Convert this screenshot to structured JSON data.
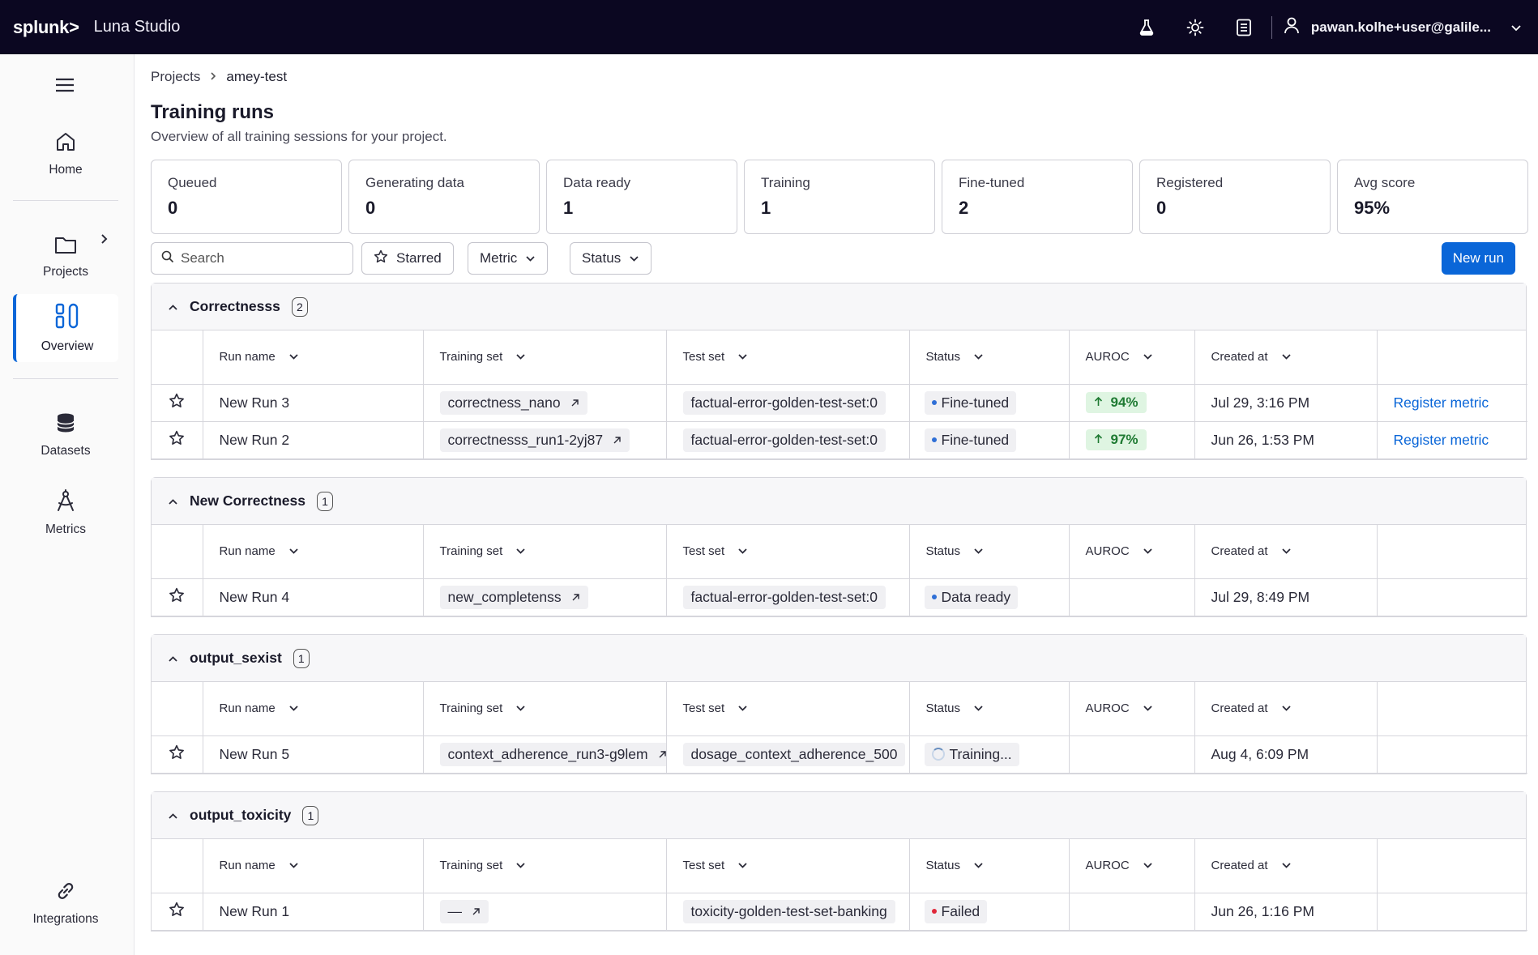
{
  "topbar": {
    "logo": "splunk>",
    "app_title": "Luna Studio",
    "user": "pawan.kolhe+user@galile...",
    "icons": [
      "flask-icon",
      "sun-icon",
      "document-icon",
      "user-icon",
      "chevron-down-icon"
    ]
  },
  "sidebar": {
    "items": [
      {
        "label": "Home",
        "icon": "home-icon"
      },
      {
        "label": "Projects",
        "icon": "folder-icon"
      },
      {
        "label": "Overview",
        "icon": "overview-icon"
      },
      {
        "label": "Datasets",
        "icon": "database-icon"
      },
      {
        "label": "Metrics",
        "icon": "compass-icon"
      },
      {
        "label": "Integrations",
        "icon": "link-icon"
      }
    ],
    "active_color": "#0a66d8"
  },
  "breadcrumb": {
    "root": "Projects",
    "current": "amey-test"
  },
  "page": {
    "title": "Training runs",
    "subtitle": "Overview of all training sessions for your project."
  },
  "stats": [
    {
      "label": "Queued",
      "value": "0"
    },
    {
      "label": "Generating data",
      "value": "0"
    },
    {
      "label": "Data ready",
      "value": "1"
    },
    {
      "label": "Training",
      "value": "1"
    },
    {
      "label": "Fine-tuned",
      "value": "2"
    },
    {
      "label": "Registered",
      "value": "0"
    },
    {
      "label": "Avg score",
      "value": "95%"
    }
  ],
  "filters": {
    "search_placeholder": "Search",
    "starred": "Starred",
    "metric": "Metric",
    "status": "Status",
    "new_run": "New run"
  },
  "columns": [
    "Run name",
    "Training set",
    "Test set",
    "Status",
    "AUROC",
    "Created at"
  ],
  "groups": [
    {
      "name": "Correctnesss",
      "count": "2",
      "rows": [
        {
          "run": "New Run 3",
          "training": "correctness_nano",
          "test": "factual-error-golden-test-set:0",
          "status": "Fine-tuned",
          "status_color": "#2f6fd6",
          "auroc": "94%",
          "created": "Jul 29, 3:16 PM",
          "action": "Register metric"
        },
        {
          "run": "New Run 2",
          "training": "correctnesss_run1-2yj87",
          "test": "factual-error-golden-test-set:0",
          "status": "Fine-tuned",
          "status_color": "#2f6fd6",
          "auroc": "97%",
          "created": "Jun 26, 1:53 PM",
          "action": "Register metric"
        }
      ]
    },
    {
      "name": "New Correctness",
      "count": "1",
      "rows": [
        {
          "run": "New Run 4",
          "training": "new_completenss",
          "test": "factual-error-golden-test-set:0",
          "status": "Data ready",
          "status_color": "#2f6fd6",
          "auroc": "",
          "created": "Jul 29, 8:49 PM",
          "action": ""
        }
      ]
    },
    {
      "name": "output_sexist",
      "count": "1",
      "rows": [
        {
          "run": "New Run 5",
          "training": "context_adherence_run3-g9lem",
          "test": "dosage_context_adherence_500",
          "status": "Training...",
          "status_color": "",
          "auroc": "",
          "created": "Aug 4, 6:09 PM",
          "action": ""
        }
      ]
    },
    {
      "name": "output_toxicity",
      "count": "1",
      "rows": [
        {
          "run": "New Run 1",
          "training": "—",
          "test": "toxicity-golden-test-set-banking",
          "status": "Failed",
          "status_color": "#e0283a",
          "auroc": "",
          "created": "Jun 26, 1:16 PM",
          "action": ""
        }
      ]
    }
  ]
}
